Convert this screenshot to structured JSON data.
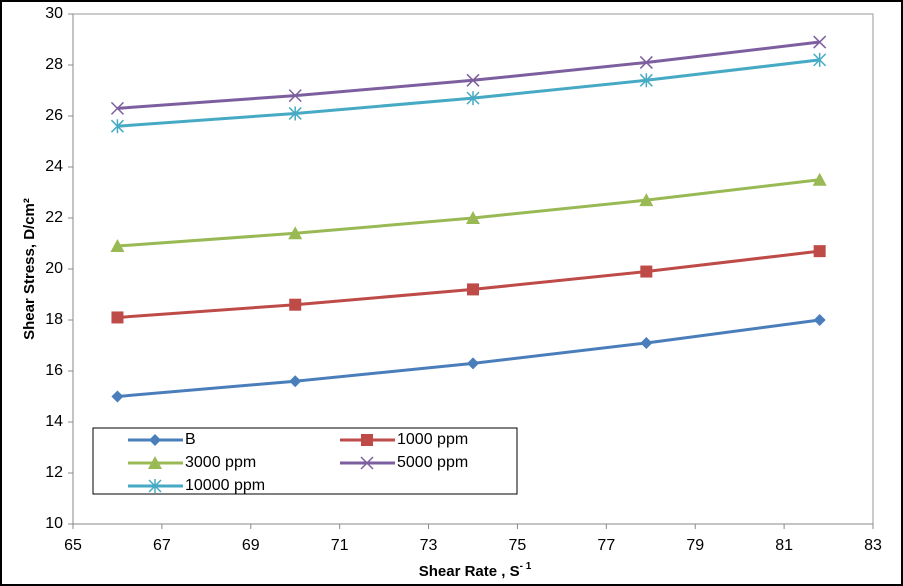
{
  "chart_data": {
    "type": "line",
    "x_label": "Shear Rate , S",
    "x_label_sup": "- 1",
    "y_label": "Shear Stress, D/cm²",
    "x": [
      66,
      70,
      74,
      77.9,
      81.8
    ],
    "series": [
      {
        "name": "B",
        "color": "#4a7ebb",
        "marker": "diamond",
        "values": [
          15.0,
          15.6,
          16.3,
          17.1,
          18.0
        ]
      },
      {
        "name": "1000 ppm",
        "color": "#be4b48",
        "marker": "square",
        "values": [
          18.1,
          18.6,
          19.2,
          19.9,
          20.7
        ]
      },
      {
        "name": "3000 ppm",
        "color": "#98b954",
        "marker": "triangle",
        "values": [
          20.9,
          21.4,
          22.0,
          22.7,
          23.5
        ]
      },
      {
        "name": "5000 ppm",
        "color": "#7d5fa0",
        "marker": "x",
        "values": [
          26.3,
          26.8,
          27.4,
          28.1,
          28.9
        ]
      },
      {
        "name": "10000 ppm",
        "color": "#46aac5",
        "marker": "star",
        "values": [
          25.6,
          26.1,
          26.7,
          27.4,
          28.2
        ]
      }
    ],
    "xlim": [
      65,
      83
    ],
    "xticks": [
      65,
      67,
      69,
      71,
      73,
      75,
      77,
      79,
      81,
      83
    ],
    "ylim": [
      10,
      30
    ],
    "yticks": [
      10,
      12,
      14,
      16,
      18,
      20,
      22,
      24,
      26,
      28,
      30
    ],
    "grid": false,
    "legend": "bottom-left"
  }
}
